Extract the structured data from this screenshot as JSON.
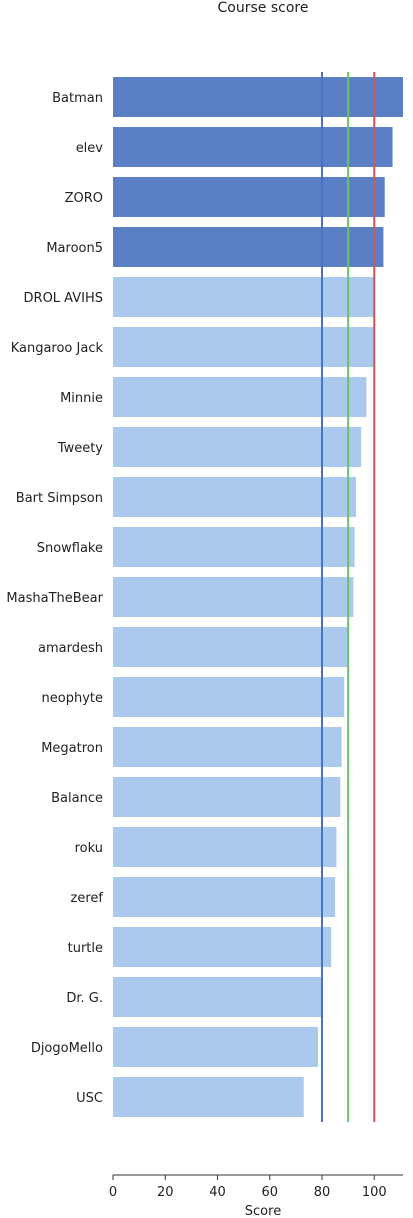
{
  "chart_data": {
    "type": "bar",
    "orientation": "horizontal",
    "title": "Course score",
    "xlabel": "Score",
    "ylabel": "",
    "xlim": [
      0,
      111
    ],
    "xticks": [
      0,
      20,
      40,
      60,
      80,
      100
    ],
    "grid": false,
    "legend": "none",
    "categories": [
      "Batman",
      "elev",
      "ZORO",
      "Maroon5",
      "DROL AVIHS",
      "Kangaroo Jack",
      "Minnie",
      "Tweety",
      "Bart Simpson",
      "Snowflake",
      "MashaTheBear",
      "amardesh",
      "neophyte",
      "Megatron",
      "Balance",
      "roku",
      "zeref",
      "turtle",
      "Dr. G.",
      "DjogoMello",
      "USC"
    ],
    "values": [
      111,
      107,
      104,
      103.5,
      100,
      100,
      97,
      95,
      93,
      92.5,
      92,
      90,
      88.5,
      87.5,
      87,
      85.5,
      85,
      83.5,
      80,
      78.5,
      73
    ],
    "highlight_count": 4,
    "colors": {
      "highlight": "#5b7fc4",
      "normal": "#abc9ed"
    },
    "reference_lines": [
      {
        "value": 80,
        "color": "#4a72c4"
      },
      {
        "value": 90,
        "color": "#6cbf6c"
      },
      {
        "value": 100,
        "color": "#c8585a"
      }
    ]
  }
}
